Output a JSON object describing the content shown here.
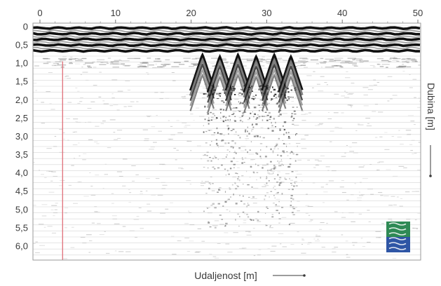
{
  "chart_data": {
    "type": "heatmap",
    "xlabel": "Udaljenost [m]",
    "ylabel": "Dubina [m]",
    "xlim": [
      0,
      50
    ],
    "ylim": [
      0,
      6.5
    ],
    "x_ticks": [
      "0",
      "10",
      "20",
      "30",
      "40",
      "50"
    ],
    "x_tick_values": [
      0,
      10,
      20,
      30,
      40,
      50
    ],
    "y_ticks": [
      "0",
      "0,5",
      "1,0",
      "1,5",
      "2,0",
      "2,5",
      "3,0",
      "3,5",
      "4,0",
      "4,5",
      "5,0",
      "5,5",
      "6,0"
    ],
    "y_tick_values": [
      0,
      0.5,
      1.0,
      1.5,
      2.0,
      2.5,
      3.0,
      3.5,
      4.0,
      4.5,
      5.0,
      5.5,
      6.0
    ],
    "grid": true,
    "surface_band_depth": [
      0,
      0.7
    ],
    "anomaly_x_range": [
      20,
      34
    ],
    "anomaly_depth_range": [
      0.7,
      5.5
    ],
    "marker_line_x": 3,
    "colors": {
      "signal_dark": "#111111",
      "marker_line": "#e0707a",
      "gridline": "#d6d6d6",
      "legend_green": "#2f8a55",
      "legend_blue": "#2e55a5"
    }
  }
}
